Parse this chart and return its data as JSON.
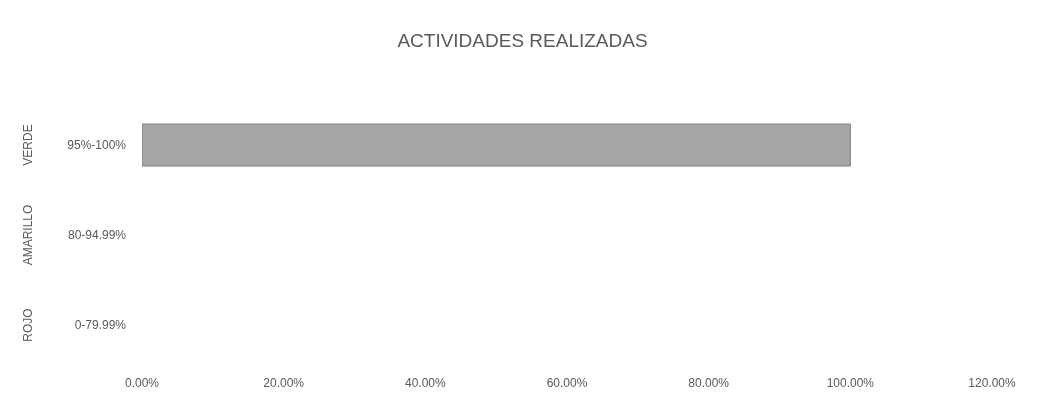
{
  "chart_data": {
    "type": "bar",
    "orientation": "horizontal",
    "title": "ACTIVIDADES REALIZADAS",
    "categories": [
      "95%-100%",
      "80-94.99%",
      "0-79.99%"
    ],
    "annotations": [
      "VERDE",
      "AMARILLO",
      "ROJO"
    ],
    "values": [
      100,
      0,
      0
    ],
    "color": "#a6a6a6",
    "xlim": [
      0,
      120
    ],
    "xticks": [
      {
        "value": 0,
        "label": "0.00%"
      },
      {
        "value": 20,
        "label": "20.00%"
      },
      {
        "value": 40,
        "label": "40.00%"
      },
      {
        "value": 60,
        "label": "60.00%"
      },
      {
        "value": 80,
        "label": "80.00%"
      },
      {
        "value": 100,
        "label": "100.00%"
      },
      {
        "value": 120,
        "label": "120.00%"
      }
    ],
    "grid": false,
    "legend": false
  }
}
